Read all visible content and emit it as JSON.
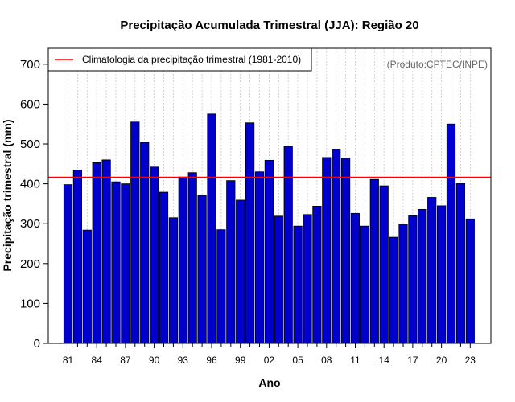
{
  "chart_data": {
    "type": "bar",
    "title": "Precipitação Acumulada Trimestral (JJA): Região 20",
    "xlabel": "Ano",
    "ylabel": "Precipitação trimestral (mm)",
    "ylim": [
      0,
      740
    ],
    "yticks": [
      0,
      100,
      200,
      300,
      400,
      500,
      600,
      700
    ],
    "grid": true,
    "source_note": "(Produto:CPTEC/INPE)",
    "categories": [
      "81",
      "82",
      "83",
      "84",
      "85",
      "86",
      "87",
      "88",
      "89",
      "90",
      "91",
      "92",
      "93",
      "94",
      "95",
      "96",
      "97",
      "98",
      "99",
      "00",
      "01",
      "02",
      "03",
      "04",
      "05",
      "06",
      "07",
      "08",
      "09",
      "10",
      "11",
      "12",
      "13",
      "14",
      "15",
      "16",
      "17",
      "18",
      "19",
      "20",
      "21",
      "22",
      "23"
    ],
    "x_tick_labels": [
      "81",
      "84",
      "87",
      "90",
      "93",
      "96",
      "99",
      "02",
      "05",
      "08",
      "11",
      "14",
      "17",
      "20",
      "23"
    ],
    "values": [
      398,
      434,
      284,
      453,
      460,
      405,
      400,
      555,
      504,
      442,
      379,
      315,
      417,
      428,
      371,
      575,
      285,
      408,
      359,
      553,
      430,
      459,
      319,
      494,
      294,
      323,
      344,
      466,
      487,
      465,
      326,
      294,
      411,
      395,
      266,
      299,
      320,
      336,
      366,
      345,
      550,
      401,
      312
    ],
    "bar_color": "#0000CC",
    "climatology": {
      "label": "Climatologia da precipitação trimestral (1981-2010)",
      "value": 416,
      "color": "#FF0000"
    },
    "legend_position": "top-left"
  }
}
